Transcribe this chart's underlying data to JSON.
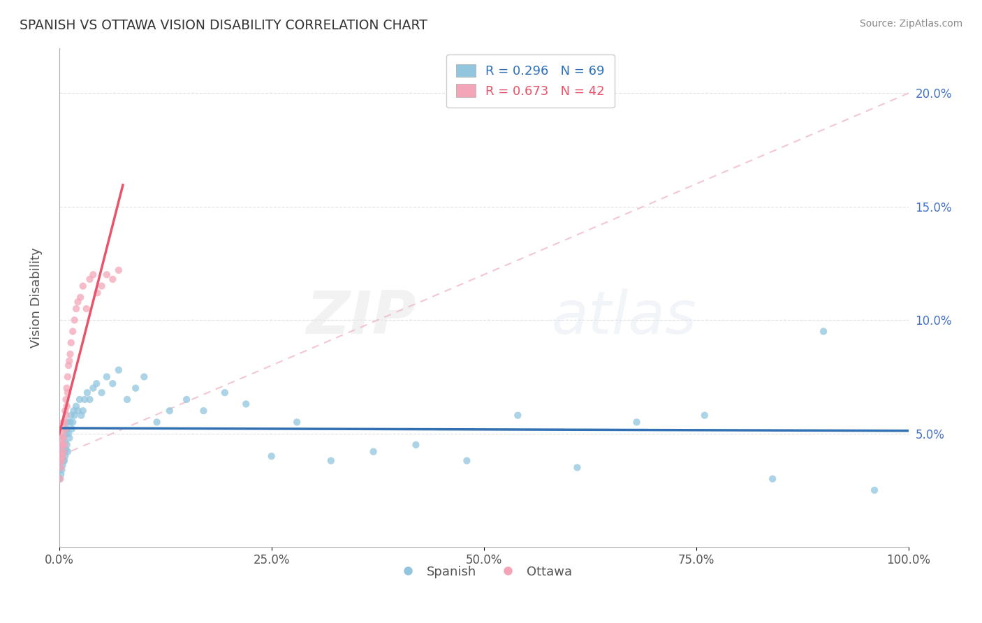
{
  "title": "SPANISH VS OTTAWA VISION DISABILITY CORRELATION CHART",
  "source": "Source: ZipAtlas.com",
  "ylabel": "Vision Disability",
  "xlim": [
    0,
    1.0
  ],
  "ylim": [
    0,
    0.22
  ],
  "xticks": [
    0,
    0.25,
    0.5,
    0.75,
    1.0
  ],
  "xticklabels": [
    "0.0%",
    "25.0%",
    "50.0%",
    "75.0%",
    "100.0%"
  ],
  "yticks": [
    0.05,
    0.1,
    0.15,
    0.2
  ],
  "yticklabels_right": [
    "5.0%",
    "10.0%",
    "15.0%",
    "20.0%"
  ],
  "blue_color": "#92c5de",
  "pink_color": "#f4a6b8",
  "blue_line_color": "#3070b3",
  "pink_line_color": "#e8546a",
  "diag_line_color": "#f0b8c8",
  "R_blue": 0.296,
  "N_blue": 69,
  "R_pink": 0.673,
  "N_pink": 42,
  "legend_label_blue": "Spanish",
  "legend_label_pink": "Ottawa",
  "blue_scatter_x": [
    0.001,
    0.001,
    0.002,
    0.002,
    0.002,
    0.002,
    0.003,
    0.003,
    0.003,
    0.004,
    0.004,
    0.004,
    0.005,
    0.005,
    0.005,
    0.006,
    0.006,
    0.007,
    0.007,
    0.008,
    0.008,
    0.009,
    0.009,
    0.01,
    0.01,
    0.011,
    0.012,
    0.013,
    0.014,
    0.015,
    0.016,
    0.017,
    0.018,
    0.02,
    0.022,
    0.024,
    0.026,
    0.028,
    0.03,
    0.033,
    0.036,
    0.04,
    0.044,
    0.05,
    0.056,
    0.063,
    0.07,
    0.08,
    0.09,
    0.1,
    0.115,
    0.13,
    0.15,
    0.17,
    0.195,
    0.22,
    0.25,
    0.28,
    0.32,
    0.37,
    0.42,
    0.48,
    0.54,
    0.61,
    0.68,
    0.76,
    0.84,
    0.9,
    0.96
  ],
  "blue_scatter_y": [
    0.03,
    0.035,
    0.032,
    0.038,
    0.04,
    0.043,
    0.034,
    0.038,
    0.042,
    0.036,
    0.04,
    0.045,
    0.038,
    0.042,
    0.048,
    0.038,
    0.042,
    0.04,
    0.046,
    0.043,
    0.05,
    0.045,
    0.052,
    0.042,
    0.055,
    0.05,
    0.048,
    0.055,
    0.058,
    0.052,
    0.055,
    0.06,
    0.058,
    0.062,
    0.06,
    0.065,
    0.058,
    0.06,
    0.065,
    0.068,
    0.065,
    0.07,
    0.072,
    0.068,
    0.075,
    0.072,
    0.078,
    0.065,
    0.07,
    0.075,
    0.055,
    0.06,
    0.065,
    0.06,
    0.068,
    0.063,
    0.04,
    0.055,
    0.038,
    0.042,
    0.045,
    0.038,
    0.058,
    0.035,
    0.055,
    0.058,
    0.03,
    0.095,
    0.025
  ],
  "pink_scatter_x": [
    0.001,
    0.001,
    0.002,
    0.002,
    0.002,
    0.003,
    0.003,
    0.003,
    0.004,
    0.004,
    0.004,
    0.005,
    0.005,
    0.005,
    0.006,
    0.006,
    0.007,
    0.007,
    0.008,
    0.008,
    0.009,
    0.009,
    0.01,
    0.01,
    0.011,
    0.012,
    0.013,
    0.014,
    0.016,
    0.018,
    0.02,
    0.022,
    0.025,
    0.028,
    0.032,
    0.036,
    0.04,
    0.045,
    0.05,
    0.056,
    0.063,
    0.07
  ],
  "pink_scatter_y": [
    0.03,
    0.038,
    0.035,
    0.04,
    0.042,
    0.038,
    0.045,
    0.048,
    0.04,
    0.045,
    0.05,
    0.042,
    0.048,
    0.055,
    0.045,
    0.055,
    0.052,
    0.06,
    0.058,
    0.065,
    0.062,
    0.07,
    0.068,
    0.075,
    0.08,
    0.082,
    0.085,
    0.09,
    0.095,
    0.1,
    0.105,
    0.108,
    0.11,
    0.115,
    0.105,
    0.118,
    0.12,
    0.112,
    0.115,
    0.12,
    0.118,
    0.122
  ],
  "watermark_zip": "ZIP",
  "watermark_atlas": "atlas",
  "title_color": "#333333",
  "axis_color": "#555555",
  "right_axis_color": "#4472c4",
  "grid_color": "#e0e0e0",
  "grid_linestyle": "--"
}
